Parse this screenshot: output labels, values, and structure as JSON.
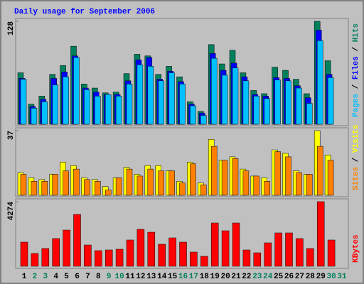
{
  "title": "Daily usage for September 2006",
  "chart_data": [
    {
      "type": "bar",
      "ylim": [
        0,
        128
      ],
      "yticks": [
        128
      ],
      "legend_separator": "/",
      "series": [
        {
          "name": "Hits",
          "color": "#00805c",
          "values": [
            64,
            25,
            35,
            62,
            73,
            97,
            50,
            45,
            39,
            40,
            63,
            87,
            85,
            62,
            72,
            59,
            28,
            16,
            99,
            75,
            92,
            64,
            42,
            38,
            71,
            67,
            56,
            38,
            128,
            79,
            null
          ]
        },
        {
          "name": "Files",
          "color": "#0000ff",
          "values": [
            57,
            22,
            31,
            57,
            65,
            85,
            45,
            40,
            37,
            37,
            54,
            80,
            83,
            56,
            66,
            53,
            25,
            14,
            88,
            67,
            76,
            59,
            37,
            35,
            58,
            57,
            48,
            33,
            117,
            62,
            null
          ]
        },
        {
          "name": "Pages",
          "color": "#00c0ff",
          "values": [
            56,
            20,
            28,
            49,
            59,
            83,
            43,
            35,
            37,
            35,
            50,
            74,
            72,
            54,
            64,
            50,
            23,
            11,
            82,
            61,
            70,
            54,
            35,
            32,
            55,
            54,
            45,
            26,
            104,
            58,
            null
          ]
        }
      ]
    },
    {
      "type": "bar",
      "ylim": [
        0,
        37
      ],
      "yticks": [
        37
      ],
      "legend_separator": "/",
      "series": [
        {
          "name": "Visits",
          "color": "#ffff00",
          "values": [
            13,
            10,
            9,
            12,
            19,
            17,
            10,
            9,
            5,
            10,
            16,
            12,
            17,
            17,
            14,
            8,
            19,
            7,
            32,
            20,
            22,
            15,
            11,
            10,
            26,
            24,
            14,
            12,
            37,
            23,
            null
          ]
        },
        {
          "name": "Sites",
          "color": "#ff8000",
          "values": [
            12,
            8,
            8,
            12,
            14,
            15,
            9,
            8,
            3,
            10,
            15,
            11,
            15,
            14,
            14,
            7,
            18,
            6,
            28,
            20,
            21,
            14,
            11,
            8,
            25,
            22,
            13,
            12,
            28,
            20,
            null
          ]
        }
      ]
    },
    {
      "type": "bar",
      "ylim": [
        0,
        4274
      ],
      "yticks": [
        4274
      ],
      "categories": [
        "1",
        "2",
        "3",
        "4",
        "5",
        "6",
        "7",
        "8",
        "9",
        "10",
        "11",
        "12",
        "13",
        "14",
        "15",
        "16",
        "17",
        "18",
        "19",
        "20",
        "21",
        "22",
        "23",
        "24",
        "25",
        "26",
        "27",
        "28",
        "29",
        "30",
        "31"
      ],
      "category_colors": [
        "#000000",
        "#00805c",
        "#00805c",
        "#000000",
        "#000000",
        "#000000",
        "#000000",
        "#000000",
        "#00805c",
        "#00805c",
        "#000000",
        "#000000",
        "#000000",
        "#000000",
        "#000000",
        "#00805c",
        "#00805c",
        "#000000",
        "#000000",
        "#000000",
        "#000000",
        "#000000",
        "#00805c",
        "#00805c",
        "#000000",
        "#000000",
        "#000000",
        "#000000",
        "#000000",
        "#00805c",
        "#00805c"
      ],
      "series": [
        {
          "name": "KBytes",
          "color": "#ff0000",
          "values": [
            1597,
            845,
            1174,
            1832,
            2395,
            3429,
            1409,
            1033,
            1080,
            1127,
            1738,
            2442,
            2254,
            1456,
            1879,
            1597,
            939,
            658,
            2865,
            2348,
            2865,
            1080,
            892,
            1550,
            2207,
            2207,
            1832,
            1174,
            4274,
            1738,
            null
          ]
        }
      ]
    }
  ]
}
